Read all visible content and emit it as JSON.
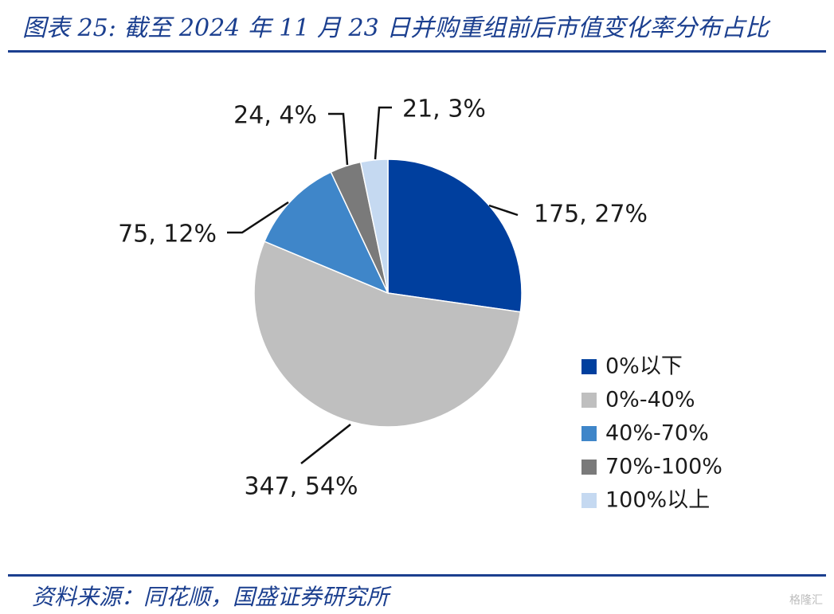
{
  "header": {
    "title": "图表 25: 截至 2024 年 11 月 23 日并购重组前后市值变化率分布占比"
  },
  "footer": {
    "source": "资料来源：同花顺，国盛证券研究所",
    "watermark": "格隆汇"
  },
  "colors": {
    "accent": "#1b3f8f",
    "leader": "#111111"
  },
  "chart_data": {
    "type": "pie",
    "title": "",
    "legend_position": "right-bottom",
    "start_angle": "12 o'clock, clockwise",
    "slices": [
      {
        "name": "0%以下",
        "value": 175,
        "percent": 27,
        "label": "175, 27%",
        "color": "#003f9e"
      },
      {
        "name": "0%-40%",
        "value": 347,
        "percent": 54,
        "label": "347, 54%",
        "color": "#bfbfbf"
      },
      {
        "name": "40%-70%",
        "value": 75,
        "percent": 12,
        "label": "75, 12%",
        "color": "#3f86c9"
      },
      {
        "name": "70%-100%",
        "value": 24,
        "percent": 4,
        "label": "24, 4%",
        "color": "#7a7a7a"
      },
      {
        "name": "100%以上",
        "value": 21,
        "percent": 3,
        "label": "21, 3%",
        "color": "#c5d9f1"
      }
    ]
  }
}
